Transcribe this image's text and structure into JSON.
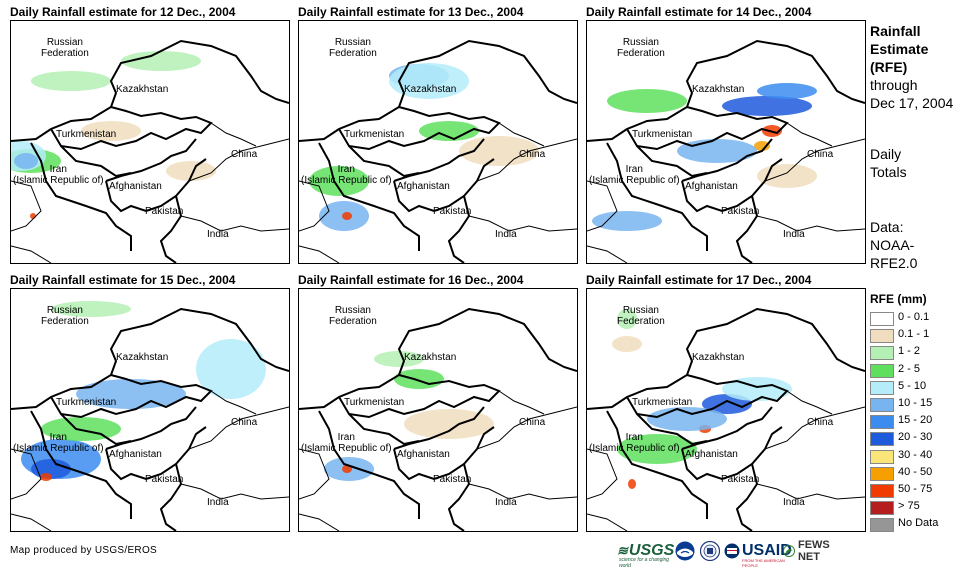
{
  "panels": [
    {
      "title": "Daily Rainfall estimate for 12 Dec., 2004"
    },
    {
      "title": "Daily Rainfall estimate for 13 Dec., 2004"
    },
    {
      "title": "Daily Rainfall estimate for 14 Dec., 2004"
    },
    {
      "title": "Daily Rainfall estimate for 15 Dec., 2004"
    },
    {
      "title": "Daily Rainfall estimate for 16 Dec., 2004"
    },
    {
      "title": "Daily Rainfall estimate for 17 Dec., 2004"
    }
  ],
  "map_labels": {
    "russia": "Russian\nFederation",
    "kazakhstan": "Kazakhstan",
    "turkmenistan": "Turkmenistan",
    "iran": "Iran\n(Islamic Republic of)",
    "afghanistan": "Afghanistan",
    "pakistan": "Pakistan",
    "china": "China",
    "india": "India"
  },
  "side_info": {
    "title_line1": "Rainfall",
    "title_line2": "Estimate",
    "title_line3": "(RFE)",
    "through": "through",
    "date": "Dec 17, 2004",
    "totals_line1": "Daily",
    "totals_line2": "Totals",
    "data_line1": "Data:",
    "data_line2": "NOAA-",
    "data_line3": "RFE2.0"
  },
  "legend": {
    "title": "RFE (mm)",
    "items": [
      {
        "label": "0 - 0.1",
        "color": "#ffffff"
      },
      {
        "label": "0.1 - 1",
        "color": "#f0ddbe"
      },
      {
        "label": "1 - 2",
        "color": "#b4f0b4"
      },
      {
        "label": "2 - 5",
        "color": "#5ee05e"
      },
      {
        "label": "5 - 10",
        "color": "#b4ecfa"
      },
      {
        "label": "10 - 15",
        "color": "#78b4f0"
      },
      {
        "label": "15 - 20",
        "color": "#3c8cf0"
      },
      {
        "label": "20 - 30",
        "color": "#1e5adc"
      },
      {
        "label": "30 - 40",
        "color": "#fae678"
      },
      {
        "label": "40 - 50",
        "color": "#f5a000"
      },
      {
        "label": "50 - 75",
        "color": "#f03c00"
      },
      {
        "label": "> 75",
        "color": "#b41e1e"
      },
      {
        "label": "No Data",
        "color": "#969696"
      }
    ]
  },
  "footer": {
    "credit": "Map produced by USGS/EROS",
    "logos": {
      "usgs": "USGS",
      "usgs_tagline": "science for a changing world",
      "usaid": "USAID",
      "usaid_tagline": "FROM THE AMERICAN PEOPLE",
      "fews": "FEWS NET"
    }
  }
}
